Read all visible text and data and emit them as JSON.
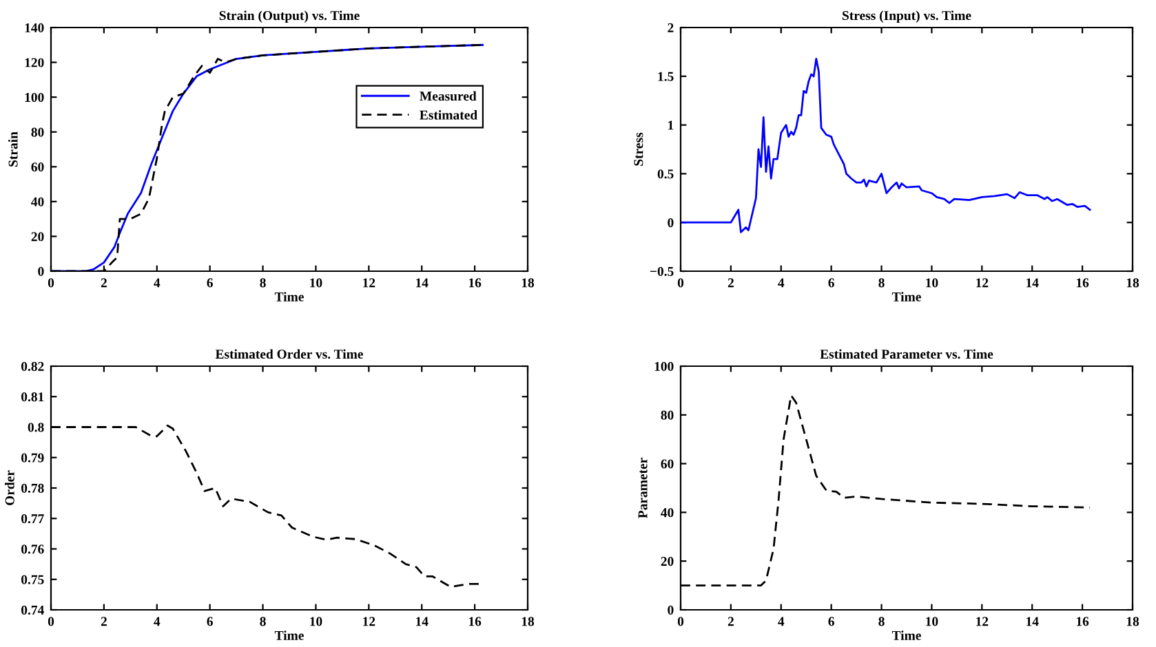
{
  "chart_data": [
    {
      "type": "line",
      "title": "Strain (Output) vs. Time",
      "xlabel": "Time",
      "ylabel": "Strain",
      "xlim": [
        0,
        18
      ],
      "xticks": [
        0,
        2,
        4,
        6,
        8,
        10,
        12,
        14,
        16,
        18
      ],
      "ylim": [
        0,
        140
      ],
      "yticks": [
        0,
        20,
        40,
        60,
        80,
        100,
        120,
        140
      ],
      "grid": false,
      "legend": "right",
      "series": [
        {
          "name": "Measured",
          "color": "#0000ff",
          "line_style": "solid",
          "x": [
            0,
            1.3,
            1.6,
            2,
            2.4,
            2.6,
            2.9,
            3.4,
            3.8,
            4.2,
            4.6,
            5,
            5.5,
            6,
            7,
            8,
            10,
            12,
            14,
            16.3
          ],
          "values": [
            0,
            0,
            1,
            5,
            14,
            22,
            33,
            45,
            62,
            77,
            92,
            102,
            112,
            116,
            122,
            124,
            126,
            128,
            129,
            130
          ]
        },
        {
          "name": "Estimated",
          "color": "#000000",
          "line_style": "dashed",
          "x": [
            0,
            2,
            2.3,
            2.5,
            2.6,
            3.0,
            3.4,
            3.7,
            4.0,
            4.2,
            4.3,
            4.6,
            5.0,
            5.4,
            5.7,
            6.0,
            6.3,
            6.6,
            7,
            8,
            9,
            10,
            12,
            14,
            16.3
          ],
          "values": [
            0,
            0,
            5,
            8,
            30,
            30,
            33,
            42,
            65,
            85,
            92,
            100,
            102,
            112,
            118,
            114,
            122,
            120,
            122,
            124,
            125,
            126,
            128,
            129,
            130
          ]
        }
      ]
    },
    {
      "type": "line",
      "title": "Stress (Input) vs. Time",
      "xlabel": "Time",
      "ylabel": "Stress",
      "xlim": [
        0,
        18
      ],
      "xticks": [
        0,
        2,
        4,
        6,
        8,
        10,
        12,
        14,
        16,
        18
      ],
      "ylim": [
        -0.5,
        2
      ],
      "yticks": [
        -0.5,
        0,
        0.5,
        1,
        1.5,
        2
      ],
      "grid": false,
      "series": [
        {
          "color": "#0000ff",
          "line_style": "solid",
          "x": [
            0,
            2,
            2.3,
            2.4,
            2.6,
            2.7,
            3.0,
            3.1,
            3.2,
            3.3,
            3.4,
            3.5,
            3.6,
            3.7,
            3.85,
            4.0,
            4.2,
            4.3,
            4.4,
            4.5,
            4.6,
            4.7,
            4.8,
            4.9,
            5.0,
            5.1,
            5.2,
            5.3,
            5.4,
            5.5,
            5.6,
            5.8,
            6.0,
            6.1,
            6.3,
            6.5,
            6.6,
            6.8,
            7.0,
            7.2,
            7.3,
            7.4,
            7.5,
            7.8,
            8.0,
            8.2,
            8.4,
            8.6,
            8.7,
            8.8,
            9.0,
            9.5,
            9.6,
            10.0,
            10.2,
            10.5,
            10.7,
            10.9,
            11.5,
            12,
            12.5,
            13.0,
            13.3,
            13.5,
            13.8,
            14.2,
            14.5,
            14.6,
            14.8,
            15.0,
            15.4,
            15.6,
            15.8,
            16.1,
            16.3
          ],
          "values": [
            0,
            0,
            0.13,
            -0.1,
            -0.05,
            -0.08,
            0.25,
            0.75,
            0.57,
            1.08,
            0.52,
            0.78,
            0.45,
            0.65,
            0.65,
            0.92,
            1.0,
            0.88,
            0.93,
            0.9,
            0.97,
            1.1,
            1.1,
            1.35,
            1.33,
            1.45,
            1.52,
            1.5,
            1.68,
            1.55,
            0.97,
            0.9,
            0.88,
            0.8,
            0.7,
            0.6,
            0.5,
            0.45,
            0.41,
            0.41,
            0.44,
            0.37,
            0.43,
            0.41,
            0.5,
            0.3,
            0.36,
            0.41,
            0.35,
            0.4,
            0.36,
            0.37,
            0.33,
            0.3,
            0.26,
            0.24,
            0.2,
            0.24,
            0.23,
            0.26,
            0.27,
            0.29,
            0.25,
            0.31,
            0.28,
            0.28,
            0.24,
            0.26,
            0.22,
            0.24,
            0.18,
            0.19,
            0.16,
            0.17,
            0.13
          ]
        }
      ]
    },
    {
      "type": "line",
      "title": "Estimated Order vs. Time",
      "xlabel": "Time",
      "ylabel": "Order",
      "xlim": [
        0,
        18
      ],
      "xticks": [
        0,
        2,
        4,
        6,
        8,
        10,
        12,
        14,
        16,
        18
      ],
      "ylim": [
        0.74,
        0.82
      ],
      "yticks": [
        0.74,
        0.75,
        0.76,
        0.77,
        0.78,
        0.79,
        0.8,
        0.81,
        0.82
      ],
      "grid": false,
      "series": [
        {
          "color": "#000000",
          "line_style": "dashed",
          "x": [
            0,
            3.2,
            3.8,
            4.0,
            4.4,
            4.6,
            5.1,
            5.5,
            5.8,
            6.2,
            6.5,
            6.8,
            7.5,
            8.2,
            8.7,
            9.1,
            9.9,
            10.4,
            10.8,
            11.5,
            12.2,
            12.8,
            13.4,
            13.8,
            14.1,
            14.4,
            14.8,
            15.1,
            15.4,
            15.8,
            16.3
          ],
          "values": [
            0.8,
            0.8,
            0.797,
            0.797,
            0.8005,
            0.7995,
            0.792,
            0.785,
            0.779,
            0.78,
            0.774,
            0.7765,
            0.7755,
            0.772,
            0.771,
            0.767,
            0.764,
            0.763,
            0.7637,
            0.7632,
            0.7612,
            0.7585,
            0.755,
            0.754,
            0.751,
            0.751,
            0.749,
            0.7475,
            0.748,
            0.7485,
            0.7485
          ]
        }
      ]
    },
    {
      "type": "line",
      "title": "Estimated Parameter vs. Time",
      "xlabel": "Time",
      "ylabel": "Parameter",
      "xlim": [
        0,
        18
      ],
      "xticks": [
        0,
        2,
        4,
        6,
        8,
        10,
        12,
        14,
        16,
        18
      ],
      "ylim": [
        0,
        100
      ],
      "yticks": [
        0,
        20,
        40,
        60,
        80,
        100
      ],
      "grid": false,
      "series": [
        {
          "color": "#000000",
          "line_style": "dashed",
          "x": [
            0,
            3.2,
            3.4,
            3.7,
            3.9,
            4.1,
            4.4,
            4.6,
            5.0,
            5.4,
            5.8,
            6.2,
            6.5,
            7.0,
            8,
            10,
            12,
            14,
            16.3
          ],
          "values": [
            10,
            10,
            12,
            25,
            45,
            70,
            88,
            85,
            70,
            55,
            49,
            48.5,
            46,
            46.5,
            45.5,
            44,
            43.5,
            42.5,
            42
          ]
        }
      ]
    }
  ]
}
